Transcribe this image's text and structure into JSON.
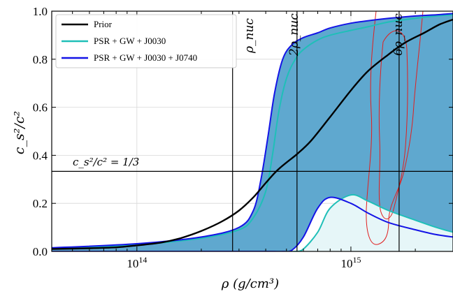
{
  "chart_data": {
    "type": "line",
    "xscale": "log",
    "xlim": [
      40000000000000.0,
      3000000000000000.0
    ],
    "ylim": [
      0,
      1
    ],
    "grid": true,
    "xlabel": "ρ (g/cm³)",
    "ylabel": "c_s²/c²",
    "yticks": [
      "0.0",
      "0.2",
      "0.4",
      "0.6",
      "0.8",
      "1.0"
    ],
    "xticks": [
      {
        "label_base": "10",
        "label_exp": "14"
      },
      {
        "label_base": "10",
        "label_exp": "15"
      }
    ],
    "legend_position": "top-left",
    "annotations": {
      "conformal": "c_s²/c² = 1/3",
      "rho_nuc": "ρ_nuc",
      "rho_2nuc": "2ρ_nuc",
      "rho_6nuc": "6ρ_nuc"
    },
    "reference_lines": {
      "horizontal_y": 0.3333,
      "vertical_x": [
        280000000000000.0,
        560000000000000.0,
        1680000000000000.0
      ]
    },
    "colors": {
      "prior": "#000000",
      "j0030": "#1fbfb8",
      "j0740": "#1414e6",
      "band_outer": "#5fa8cf",
      "band_inner": "#e6f6f8",
      "contour": "#e02020"
    },
    "series": [
      {
        "name": "Prior",
        "role": "median",
        "x": [
          40000000000000.0,
          60000000000000.0,
          80000000000000.0,
          100000000000000.0,
          130000000000000.0,
          160000000000000.0,
          200000000000000.0,
          250000000000000.0,
          300000000000000.0,
          350000000000000.0,
          400000000000000.0,
          450000000000000.0,
          500000000000000.0,
          560000000000000.0,
          650000000000000.0,
          800000000000000.0,
          1000000000000000.0,
          1200000000000000.0,
          1500000000000000.0,
          1800000000000000.0,
          2200000000000000.0,
          2600000000000000.0,
          3000000000000000.0
        ],
        "y": [
          0.01,
          0.013,
          0.017,
          0.025,
          0.037,
          0.055,
          0.085,
          0.125,
          0.17,
          0.225,
          0.285,
          0.335,
          0.37,
          0.405,
          0.46,
          0.56,
          0.67,
          0.75,
          0.82,
          0.87,
          0.91,
          0.945,
          0.965
        ]
      },
      {
        "name": "PSR + GW + J0030",
        "role": "band",
        "x": [
          40000000000000.0,
          100000000000000.0,
          200000000000000.0,
          300000000000000.0,
          350000000000000.0,
          400000000000000.0,
          430000000000000.0,
          460000000000000.0,
          500000000000000.0,
          550000000000000.0,
          600000000000000.0,
          700000000000000.0,
          800000000000000.0,
          1000000000000000.0,
          1200000000000000.0,
          1500000000000000.0,
          2000000000000000.0,
          2500000000000000.0,
          3000000000000000.0
        ],
        "upper": [
          0.012,
          0.028,
          0.055,
          0.09,
          0.14,
          0.25,
          0.4,
          0.58,
          0.72,
          0.8,
          0.84,
          0.88,
          0.9,
          0.92,
          0.935,
          0.955,
          0.97,
          0.98,
          0.985
        ],
        "lower": [
          0.0,
          0.0,
          0.0,
          0.0,
          0.0,
          0.0,
          0.0,
          0.0,
          0.0,
          0.0,
          0.01,
          0.08,
          0.18,
          0.235,
          0.21,
          0.17,
          0.13,
          0.1,
          0.08
        ]
      },
      {
        "name": "PSR + GW + J0030 + J0740",
        "role": "band",
        "x": [
          40000000000000.0,
          100000000000000.0,
          200000000000000.0,
          300000000000000.0,
          350000000000000.0,
          380000000000000.0,
          410000000000000.0,
          440000000000000.0,
          480000000000000.0,
          530000000000000.0,
          600000000000000.0,
          700000000000000.0,
          800000000000000.0,
          1000000000000000.0,
          1200000000000000.0,
          1500000000000000.0,
          2000000000000000.0,
          2500000000000000.0,
          3000000000000000.0
        ],
        "upper": [
          0.015,
          0.032,
          0.06,
          0.1,
          0.17,
          0.3,
          0.48,
          0.66,
          0.8,
          0.86,
          0.89,
          0.91,
          0.93,
          0.95,
          0.96,
          0.97,
          0.98,
          0.985,
          0.99
        ],
        "lower": [
          0.0,
          0.0,
          0.0,
          0.0,
          0.0,
          0.0,
          0.0,
          0.0,
          0.0,
          0.005,
          0.06,
          0.18,
          0.225,
          0.2,
          0.16,
          0.12,
          0.09,
          0.07,
          0.06
        ]
      }
    ]
  }
}
